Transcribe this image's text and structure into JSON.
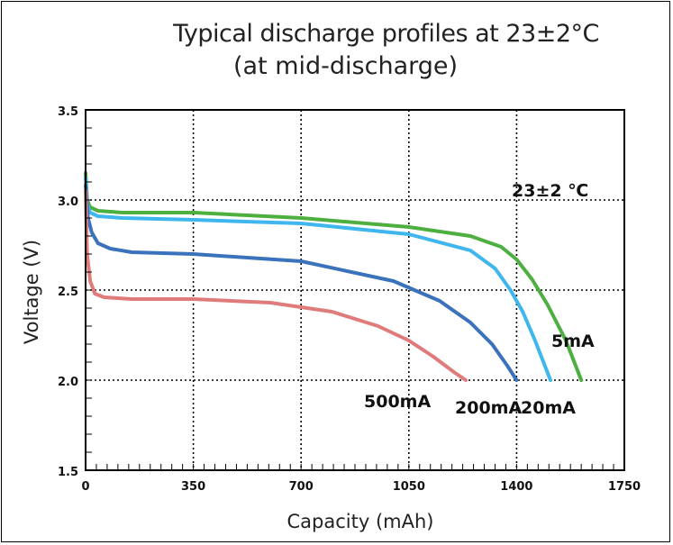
{
  "chart_data": {
    "type": "line",
    "title": "Typical discharge profiles at 23±2°C",
    "subtitle": "(at mid-discharge)",
    "xlabel": "Capacity (mAh)",
    "ylabel": "Voltage (V)",
    "xlim": [
      0,
      1750
    ],
    "ylim": [
      1.5,
      3.5
    ],
    "xticks": [
      "0",
      "350",
      "700",
      "1050",
      "1400",
      "1750"
    ],
    "yticks": [
      "1.5",
      "2.0",
      "2.5",
      "3.0",
      "3.5"
    ],
    "grid": true,
    "annotation": "23±2 ℃",
    "series": [
      {
        "name": "5mA",
        "color": "#4caf3f",
        "x": [
          0,
          5,
          15,
          40,
          120,
          350,
          700,
          1050,
          1250,
          1350,
          1400,
          1450,
          1500,
          1560,
          1610
        ],
        "y": [
          3.15,
          3.0,
          2.96,
          2.94,
          2.93,
          2.93,
          2.9,
          2.85,
          2.8,
          2.74,
          2.67,
          2.56,
          2.42,
          2.22,
          2.0
        ]
      },
      {
        "name": "20mA",
        "color": "#3fb6ee",
        "x": [
          0,
          5,
          15,
          40,
          120,
          350,
          700,
          1050,
          1250,
          1330,
          1380,
          1420,
          1460,
          1510
        ],
        "y": [
          3.12,
          2.98,
          2.93,
          2.91,
          2.9,
          2.89,
          2.87,
          2.81,
          2.72,
          2.62,
          2.5,
          2.38,
          2.22,
          2.0
        ]
      },
      {
        "name": "200mA",
        "color": "#3a72bb",
        "x": [
          0,
          8,
          20,
          40,
          80,
          150,
          350,
          700,
          1000,
          1150,
          1250,
          1320,
          1370,
          1400
        ],
        "y": [
          3.08,
          2.9,
          2.82,
          2.76,
          2.73,
          2.71,
          2.7,
          2.66,
          2.55,
          2.44,
          2.32,
          2.2,
          2.08,
          2.0
        ]
      },
      {
        "name": "500mA",
        "color": "#e07b7b",
        "x": [
          0,
          5,
          15,
          30,
          60,
          150,
          350,
          600,
          800,
          950,
          1050,
          1130,
          1200,
          1235
        ],
        "y": [
          3.05,
          2.7,
          2.55,
          2.48,
          2.46,
          2.45,
          2.45,
          2.43,
          2.38,
          2.3,
          2.22,
          2.13,
          2.04,
          2.0
        ]
      }
    ]
  }
}
